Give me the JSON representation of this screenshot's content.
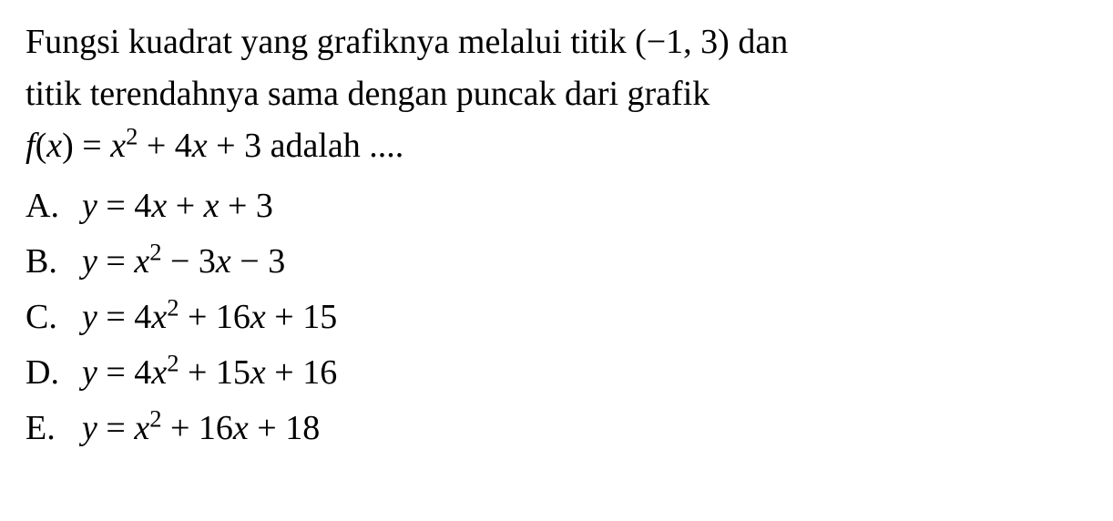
{
  "question": {
    "line1": "Fungsi kuadrat yang grafiknya melalui titik (−1, 3) dan",
    "line2": "titik terendahnya sama dengan puncak dari grafik",
    "fx_label": "f",
    "fx_paren_open": "(",
    "fx_var": "x",
    "fx_paren_close": ")",
    "fx_eq": " = ",
    "fx_x": "x",
    "fx_exp": "2",
    "fx_plus1": " + 4",
    "fx_x2": "x",
    "fx_plus2": " + 3",
    "fx_tail": " adalah ...."
  },
  "options": {
    "A": {
      "letter": "A.",
      "pre": "y = 4x + x + 3"
    },
    "B": {
      "letter": "B.",
      "pre": "y = x",
      "exp": "2",
      "post": " − 3x − 3"
    },
    "C": {
      "letter": "C.",
      "pre": "y = 4x",
      "exp": "2",
      "post": " + 16x + 15"
    },
    "D": {
      "letter": "D.",
      "pre": "y = 4x",
      "exp": "2",
      "post": " + 15x + 16"
    },
    "E": {
      "letter": "E.",
      "pre": "y = x",
      "exp": "2",
      "post": " + 16x + 18"
    }
  },
  "style": {
    "font_family": "Times New Roman",
    "font_size_pt": 28,
    "text_color": "#000000",
    "background_color": "#ffffff"
  }
}
